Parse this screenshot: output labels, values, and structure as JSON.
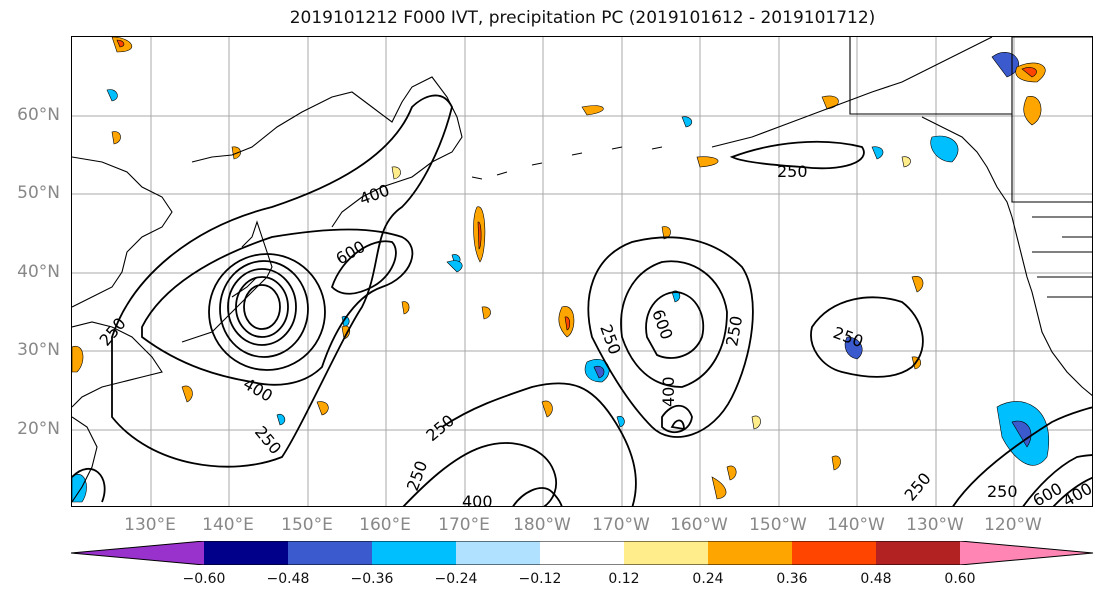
{
  "title": "2019101212 F000 IVT, precipitation PC (2019101612 - 2019101712)",
  "lat_labels": [
    "60°N",
    "50°N",
    "40°N",
    "30°N",
    "20°N"
  ],
  "lon_labels": [
    "130°E",
    "140°E",
    "150°E",
    "160°E",
    "170°E",
    "180°W",
    "170°W",
    "160°W",
    "150°W",
    "140°W",
    "130°W",
    "120°W"
  ],
  "contour_labels": [
    "250",
    "400",
    "600",
    "250",
    "400",
    "250",
    "250",
    "250",
    "250",
    "400",
    "250",
    "600",
    "250",
    "400",
    "250",
    "600",
    "250",
    "400"
  ],
  "colorbar": {
    "ticks": [
      "−0.60",
      "−0.48",
      "−0.36",
      "−0.24",
      "−0.12",
      "0.12",
      "0.24",
      "0.36",
      "0.48",
      "0.60"
    ],
    "colors": [
      "#9932cc",
      "#00008b",
      "#3a5acd",
      "#00bfff",
      "#b0e2ff",
      "#ffffff",
      "#ffec8b",
      "#ffa500",
      "#ff4500",
      "#b22222",
      "#ff86b4"
    ]
  },
  "icons": [
    "coastline-map",
    "ivt-contours",
    "precip-anomaly-fill"
  ]
}
